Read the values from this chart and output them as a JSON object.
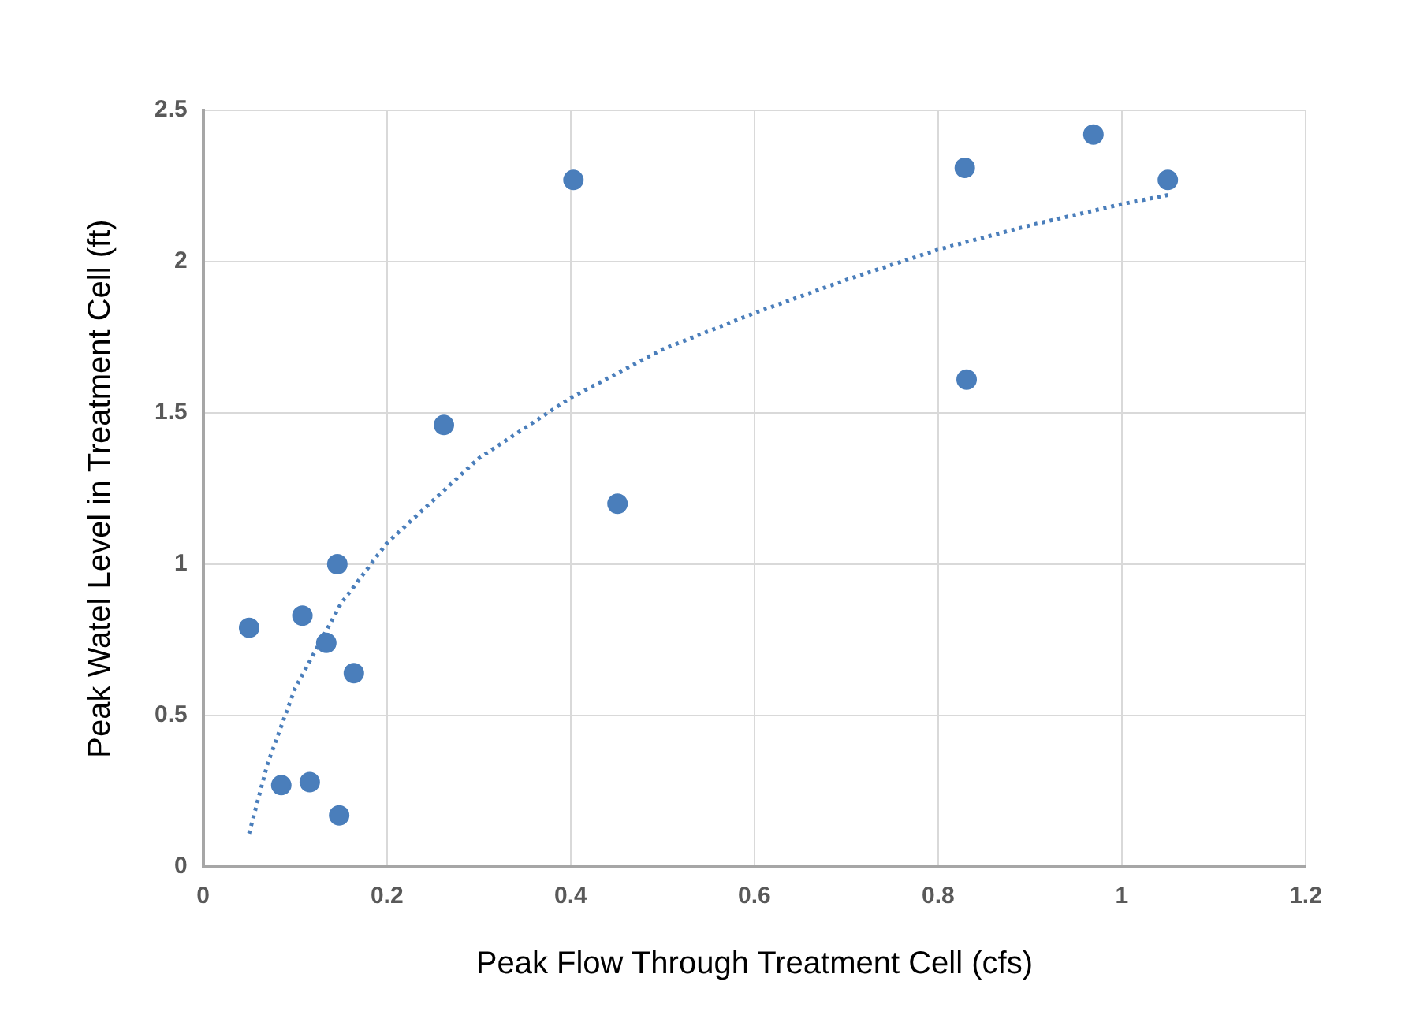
{
  "chart_data": {
    "type": "scatter",
    "xlabel": "Peak Flow Through Treatment Cell (cfs)",
    "ylabel": "Peak Watel Level in Treatment Cell (ft)",
    "xlim": [
      0,
      1.2
    ],
    "xticks": [
      0,
      0.2,
      0.4,
      0.6,
      0.8,
      1,
      1.2
    ],
    "ylim": [
      0,
      2.5
    ],
    "yticks": [
      0,
      0.5,
      1,
      1.5,
      2,
      2.5
    ],
    "grid": true,
    "legend": false,
    "series": [
      {
        "type": "scatter",
        "color": "#4a7ebb",
        "marker": "circle",
        "x": [
          0.05,
          0.108,
          0.146,
          0.134,
          0.164,
          0.085,
          0.116,
          0.148,
          0.262,
          0.403,
          0.451,
          0.829,
          0.831,
          0.969,
          1.05
        ],
        "values": [
          0.79,
          0.83,
          1.0,
          0.74,
          0.64,
          0.27,
          0.28,
          0.17,
          1.46,
          2.27,
          1.2,
          2.31,
          1.61,
          2.42,
          2.27
        ]
      },
      {
        "type": "line",
        "color": "#4a7ebb",
        "line_style": "dotted",
        "marker": "none",
        "x": [
          0.05,
          0.07,
          0.1,
          0.15,
          0.2,
          0.3,
          0.4,
          0.5,
          0.6,
          0.7,
          0.8,
          0.9,
          1.0,
          1.05
        ],
        "values": [
          0.11,
          0.34,
          0.59,
          0.87,
          1.07,
          1.35,
          1.55,
          1.71,
          1.83,
          1.94,
          2.04,
          2.12,
          2.19,
          2.22
        ]
      }
    ]
  }
}
